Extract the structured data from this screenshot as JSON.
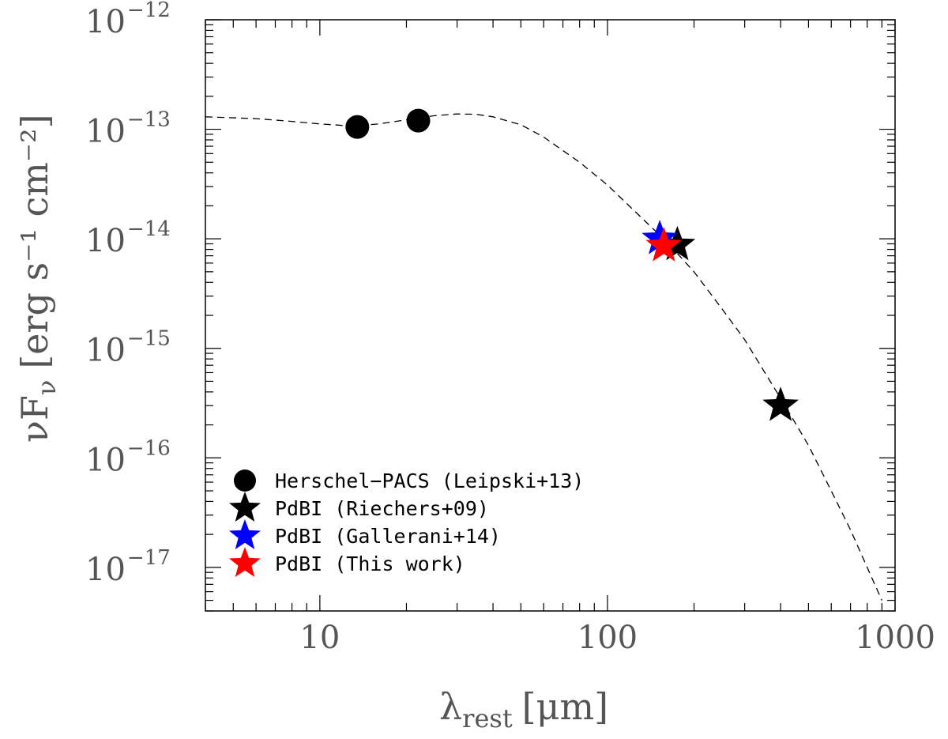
{
  "chart_data": {
    "type": "scatter",
    "xscale": "log",
    "yscale": "log",
    "xlim": [
      4,
      1000
    ],
    "ylim": [
      4e-18,
      1e-12
    ],
    "xlabel": {
      "base": "λ",
      "subscript": "rest",
      "unit": "[μm]"
    },
    "ylabel": {
      "base": "νF",
      "subscript": "ν",
      "unit": "[erg s⁻¹ cm⁻²]"
    },
    "xticks": [
      {
        "value": 10,
        "label": "10"
      },
      {
        "value": 100,
        "label": "100"
      },
      {
        "value": 1000,
        "label": "1000"
      }
    ],
    "yticks": [
      {
        "value": 1e-17,
        "base": "10",
        "exponent": "−17"
      },
      {
        "value": 1e-16,
        "base": "10",
        "exponent": "−16"
      },
      {
        "value": 1e-15,
        "base": "10",
        "exponent": "−15"
      },
      {
        "value": 1e-14,
        "base": "10",
        "exponent": "−14"
      },
      {
        "value": 1e-13,
        "base": "10",
        "exponent": "−13"
      },
      {
        "value": 1e-12,
        "base": "10",
        "exponent": "−12"
      }
    ],
    "grid": false,
    "legend_position": "bottom-left",
    "series": [
      {
        "name": "Herschel−PACS (Leipski+13)",
        "marker": "circle",
        "color": "#000000",
        "points": [
          {
            "x": 13.5,
            "y": 1.05e-13
          },
          {
            "x": 22,
            "y": 1.2e-13
          }
        ]
      },
      {
        "name": "PdBI (Riechers+09)",
        "marker": "star",
        "color": "#000000",
        "points": [
          {
            "x": 175,
            "y": 8.8e-15
          },
          {
            "x": 400,
            "y": 3e-16
          }
        ]
      },
      {
        "name": "PdBI (Gallerani+14)",
        "marker": "star",
        "color": "#0000ff",
        "points": [
          {
            "x": 152,
            "y": 1e-14
          }
        ]
      },
      {
        "name": "PdBI (This work)",
        "marker": "star",
        "color": "#ff0000",
        "points": [
          {
            "x": 157,
            "y": 8.6e-15
          }
        ]
      }
    ],
    "model_curve": {
      "style": "dashed",
      "color": "#000000",
      "points": [
        {
          "x": 4,
          "y": 1.3e-13
        },
        {
          "x": 6,
          "y": 1.25e-13
        },
        {
          "x": 8,
          "y": 1.18e-13
        },
        {
          "x": 10,
          "y": 1.12e-13
        },
        {
          "x": 13,
          "y": 1.07e-13
        },
        {
          "x": 16,
          "y": 1.12e-13
        },
        {
          "x": 20,
          "y": 1.22e-13
        },
        {
          "x": 25,
          "y": 1.33e-13
        },
        {
          "x": 30,
          "y": 1.38e-13
        },
        {
          "x": 35,
          "y": 1.37e-13
        },
        {
          "x": 40,
          "y": 1.3e-13
        },
        {
          "x": 50,
          "y": 1.1e-13
        },
        {
          "x": 60,
          "y": 8.5e-14
        },
        {
          "x": 80,
          "y": 5e-14
        },
        {
          "x": 100,
          "y": 3.1e-14
        },
        {
          "x": 130,
          "y": 1.6e-14
        },
        {
          "x": 160,
          "y": 9.5e-15
        },
        {
          "x": 200,
          "y": 5e-15
        },
        {
          "x": 250,
          "y": 2.3e-15
        },
        {
          "x": 300,
          "y": 1.2e-15
        },
        {
          "x": 400,
          "y": 3.5e-16
        },
        {
          "x": 500,
          "y": 1.3e-16
        },
        {
          "x": 600,
          "y": 5e-17
        },
        {
          "x": 700,
          "y": 2.2e-17
        },
        {
          "x": 800,
          "y": 1e-17
        },
        {
          "x": 900,
          "y": 5e-18
        }
      ]
    }
  }
}
